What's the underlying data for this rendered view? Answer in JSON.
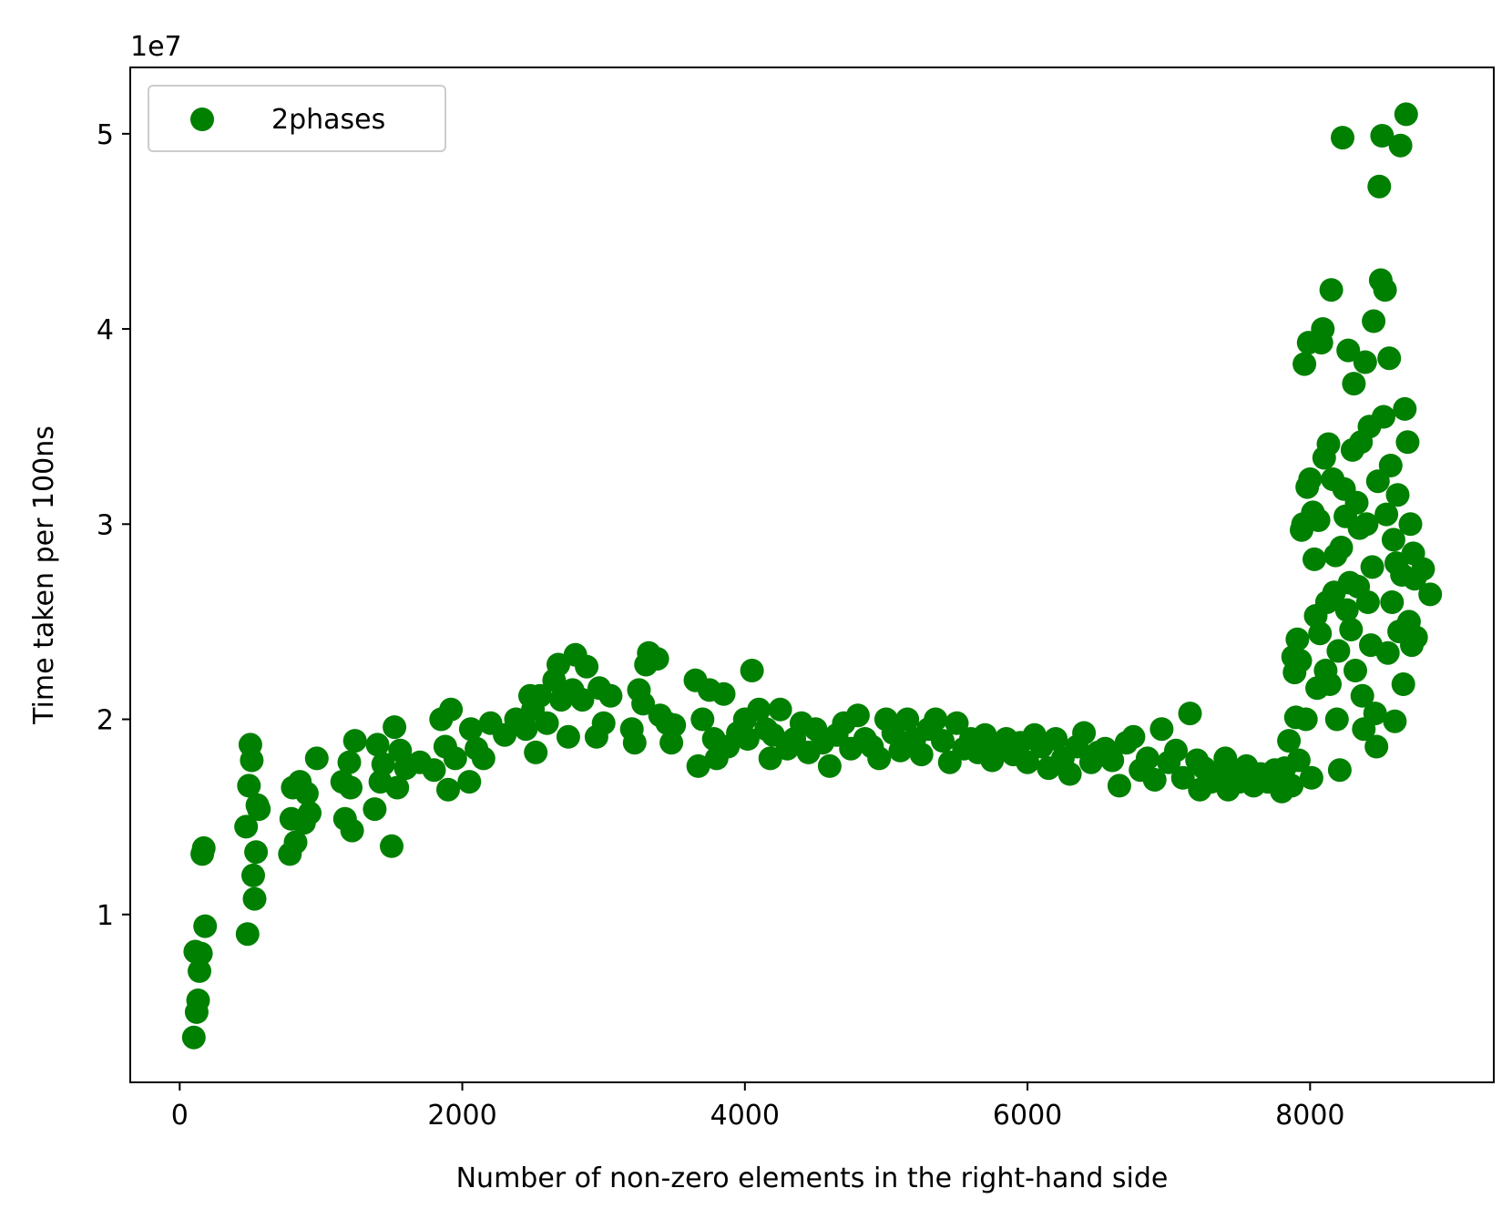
{
  "chart_data": {
    "type": "scatter",
    "xlabel": "Number of non-zero elements in the right-hand side",
    "ylabel": "Time taken per 100ns",
    "y_multiplier": "1e7",
    "xlim": [
      -350,
      9300
    ],
    "ylim": [
      1.4,
      53.4
    ],
    "x_ticks": [
      0,
      2000,
      4000,
      6000,
      8000
    ],
    "x_tick_labels": [
      "0",
      "2000",
      "4000",
      "6000",
      "8000"
    ],
    "y_ticks": [
      10,
      20,
      30,
      40,
      50
    ],
    "y_tick_labels": [
      "1",
      "2",
      "3",
      "4",
      "5"
    ],
    "legend_position": "top-left",
    "grid": false,
    "series": [
      {
        "name": "2phases",
        "color": "#008000",
        "points": [
          [
            100,
            3.7
          ],
          [
            120,
            5.0
          ],
          [
            130,
            5.6
          ],
          [
            110,
            8.1
          ],
          [
            140,
            7.1
          ],
          [
            150,
            8.0
          ],
          [
            160,
            13.1
          ],
          [
            170,
            13.4
          ],
          [
            180,
            9.4
          ],
          [
            480,
            9.0
          ],
          [
            470,
            14.5
          ],
          [
            490,
            16.6
          ],
          [
            500,
            18.7
          ],
          [
            510,
            17.9
          ],
          [
            520,
            12.0
          ],
          [
            530,
            10.8
          ],
          [
            540,
            13.2
          ],
          [
            550,
            15.6
          ],
          [
            560,
            15.4
          ],
          [
            780,
            13.1
          ],
          [
            790,
            14.9
          ],
          [
            800,
            16.5
          ],
          [
            820,
            13.7
          ],
          [
            850,
            16.8
          ],
          [
            880,
            14.7
          ],
          [
            900,
            16.2
          ],
          [
            920,
            15.2
          ],
          [
            970,
            18.0
          ],
          [
            1150,
            16.8
          ],
          [
            1170,
            14.9
          ],
          [
            1200,
            17.8
          ],
          [
            1210,
            16.5
          ],
          [
            1220,
            14.3
          ],
          [
            1240,
            18.9
          ],
          [
            1380,
            15.4
          ],
          [
            1400,
            18.7
          ],
          [
            1420,
            16.8
          ],
          [
            1440,
            17.7
          ],
          [
            1500,
            13.5
          ],
          [
            1520,
            19.6
          ],
          [
            1540,
            16.5
          ],
          [
            1560,
            18.4
          ],
          [
            1600,
            17.5
          ],
          [
            1700,
            17.8
          ],
          [
            1800,
            17.4
          ],
          [
            1850,
            20.0
          ],
          [
            1880,
            18.6
          ],
          [
            1900,
            16.4
          ],
          [
            1920,
            20.5
          ],
          [
            1950,
            18.0
          ],
          [
            2050,
            16.8
          ],
          [
            2060,
            19.5
          ],
          [
            2100,
            18.5
          ],
          [
            2150,
            18.0
          ],
          [
            2200,
            19.8
          ],
          [
            2300,
            19.2
          ],
          [
            2380,
            20.0
          ],
          [
            2450,
            19.5
          ],
          [
            2480,
            21.2
          ],
          [
            2500,
            20.5
          ],
          [
            2520,
            18.3
          ],
          [
            2550,
            21.2
          ],
          [
            2600,
            19.8
          ],
          [
            2650,
            22.0
          ],
          [
            2680,
            22.8
          ],
          [
            2700,
            21.0
          ],
          [
            2750,
            19.1
          ],
          [
            2780,
            21.5
          ],
          [
            2800,
            23.3
          ],
          [
            2850,
            21.0
          ],
          [
            2880,
            22.7
          ],
          [
            2950,
            19.1
          ],
          [
            2970,
            21.6
          ],
          [
            3000,
            19.8
          ],
          [
            3050,
            21.2
          ],
          [
            3200,
            19.5
          ],
          [
            3220,
            18.8
          ],
          [
            3250,
            21.5
          ],
          [
            3280,
            20.8
          ],
          [
            3300,
            22.8
          ],
          [
            3320,
            23.4
          ],
          [
            3380,
            23.1
          ],
          [
            3400,
            20.2
          ],
          [
            3450,
            19.8
          ],
          [
            3480,
            18.8
          ],
          [
            3500,
            19.7
          ],
          [
            3650,
            22.0
          ],
          [
            3670,
            17.6
          ],
          [
            3700,
            20.0
          ],
          [
            3750,
            21.5
          ],
          [
            3780,
            19.0
          ],
          [
            3800,
            18.0
          ],
          [
            3850,
            21.3
          ],
          [
            3880,
            18.6
          ],
          [
            3950,
            19.3
          ],
          [
            4000,
            20.0
          ],
          [
            4020,
            19.0
          ],
          [
            4050,
            22.5
          ],
          [
            4100,
            20.5
          ],
          [
            4150,
            19.5
          ],
          [
            4180,
            18.0
          ],
          [
            4200,
            19.2
          ],
          [
            4250,
            20.5
          ],
          [
            4300,
            18.5
          ],
          [
            4350,
            19.0
          ],
          [
            4400,
            19.8
          ],
          [
            4450,
            18.3
          ],
          [
            4500,
            19.5
          ],
          [
            4550,
            18.8
          ],
          [
            4600,
            17.6
          ],
          [
            4650,
            19.2
          ],
          [
            4700,
            19.8
          ],
          [
            4750,
            18.5
          ],
          [
            4800,
            20.2
          ],
          [
            4850,
            19.0
          ],
          [
            4900,
            18.6
          ],
          [
            4950,
            18.0
          ],
          [
            5000,
            20.0
          ],
          [
            5050,
            19.3
          ],
          [
            5100,
            18.4
          ],
          [
            5150,
            20.0
          ],
          [
            5200,
            19.0
          ],
          [
            5250,
            18.2
          ],
          [
            5300,
            19.5
          ],
          [
            5350,
            20.0
          ],
          [
            5400,
            18.9
          ],
          [
            5450,
            17.8
          ],
          [
            5500,
            19.8
          ],
          [
            5550,
            18.5
          ],
          [
            5600,
            19.0
          ],
          [
            5650,
            18.3
          ],
          [
            5700,
            19.2
          ],
          [
            5750,
            17.9
          ],
          [
            5800,
            18.6
          ],
          [
            5850,
            19.0
          ],
          [
            5900,
            18.2
          ],
          [
            5950,
            18.8
          ],
          [
            6000,
            17.8
          ],
          [
            6050,
            19.2
          ],
          [
            6100,
            18.6
          ],
          [
            6150,
            17.5
          ],
          [
            6200,
            19.0
          ],
          [
            6250,
            18.0
          ],
          [
            6300,
            17.2
          ],
          [
            6350,
            18.6
          ],
          [
            6400,
            19.3
          ],
          [
            6450,
            17.8
          ],
          [
            6500,
            18.3
          ],
          [
            6550,
            18.5
          ],
          [
            6600,
            17.9
          ],
          [
            6650,
            16.6
          ],
          [
            6700,
            18.8
          ],
          [
            6750,
            19.1
          ],
          [
            6800,
            17.4
          ],
          [
            6850,
            18.0
          ],
          [
            6900,
            16.9
          ],
          [
            6950,
            19.5
          ],
          [
            7000,
            17.8
          ],
          [
            7050,
            18.4
          ],
          [
            7100,
            17.0
          ],
          [
            7150,
            20.3
          ],
          [
            7200,
            17.9
          ],
          [
            7220,
            16.4
          ],
          [
            7250,
            17.5
          ],
          [
            7300,
            16.8
          ],
          [
            7350,
            17.1
          ],
          [
            7400,
            18.0
          ],
          [
            7420,
            16.4
          ],
          [
            7450,
            17.2
          ],
          [
            7500,
            16.8
          ],
          [
            7550,
            17.6
          ],
          [
            7600,
            16.6
          ],
          [
            7650,
            17.2
          ],
          [
            7700,
            16.8
          ],
          [
            7750,
            17.4
          ],
          [
            7800,
            16.3
          ],
          [
            7820,
            17.5
          ],
          [
            7850,
            18.9
          ],
          [
            7870,
            16.6
          ],
          [
            7880,
            23.2
          ],
          [
            7890,
            22.4
          ],
          [
            7900,
            20.1
          ],
          [
            7910,
            24.1
          ],
          [
            7920,
            17.9
          ],
          [
            7930,
            23.0
          ],
          [
            7940,
            29.7
          ],
          [
            7950,
            30.0
          ],
          [
            7960,
            38.2
          ],
          [
            7970,
            20.0
          ],
          [
            7980,
            31.9
          ],
          [
            7990,
            39.3
          ],
          [
            8000,
            32.3
          ],
          [
            8010,
            17.0
          ],
          [
            8020,
            30.6
          ],
          [
            8030,
            28.2
          ],
          [
            8040,
            25.3
          ],
          [
            8050,
            21.6
          ],
          [
            8060,
            30.2
          ],
          [
            8070,
            24.4
          ],
          [
            8080,
            39.3
          ],
          [
            8090,
            40.0
          ],
          [
            8100,
            33.4
          ],
          [
            8110,
            22.5
          ],
          [
            8120,
            26.0
          ],
          [
            8130,
            34.1
          ],
          [
            8140,
            21.8
          ],
          [
            8150,
            42.0
          ],
          [
            8160,
            32.3
          ],
          [
            8170,
            26.5
          ],
          [
            8180,
            28.4
          ],
          [
            8190,
            20.0
          ],
          [
            8200,
            23.5
          ],
          [
            8210,
            17.4
          ],
          [
            8220,
            28.8
          ],
          [
            8230,
            49.8
          ],
          [
            8240,
            31.8
          ],
          [
            8250,
            30.4
          ],
          [
            8260,
            25.6
          ],
          [
            8270,
            38.9
          ],
          [
            8280,
            27.0
          ],
          [
            8290,
            24.6
          ],
          [
            8300,
            33.8
          ],
          [
            8310,
            37.2
          ],
          [
            8320,
            22.5
          ],
          [
            8330,
            31.1
          ],
          [
            8340,
            26.8
          ],
          [
            8350,
            29.8
          ],
          [
            8360,
            34.2
          ],
          [
            8370,
            21.2
          ],
          [
            8380,
            19.5
          ],
          [
            8390,
            38.3
          ],
          [
            8400,
            30.0
          ],
          [
            8410,
            26.0
          ],
          [
            8420,
            35.0
          ],
          [
            8430,
            23.8
          ],
          [
            8440,
            27.8
          ],
          [
            8450,
            40.4
          ],
          [
            8460,
            20.3
          ],
          [
            8470,
            18.6
          ],
          [
            8480,
            32.2
          ],
          [
            8490,
            47.3
          ],
          [
            8500,
            42.5
          ],
          [
            8510,
            49.9
          ],
          [
            8520,
            35.5
          ],
          [
            8530,
            42.0
          ],
          [
            8540,
            30.5
          ],
          [
            8550,
            23.4
          ],
          [
            8560,
            38.5
          ],
          [
            8570,
            33.0
          ],
          [
            8580,
            26.0
          ],
          [
            8590,
            29.2
          ],
          [
            8600,
            19.9
          ],
          [
            8610,
            28.0
          ],
          [
            8620,
            31.5
          ],
          [
            8630,
            24.5
          ],
          [
            8640,
            49.4
          ],
          [
            8650,
            27.4
          ],
          [
            8660,
            21.8
          ],
          [
            8670,
            35.9
          ],
          [
            8680,
            51.0
          ],
          [
            8690,
            34.2
          ],
          [
            8700,
            25.0
          ],
          [
            8710,
            30.0
          ],
          [
            8720,
            23.8
          ],
          [
            8730,
            28.5
          ],
          [
            8740,
            27.2
          ],
          [
            8750,
            24.2
          ],
          [
            8800,
            27.7
          ],
          [
            8850,
            26.4
          ]
        ]
      }
    ]
  }
}
